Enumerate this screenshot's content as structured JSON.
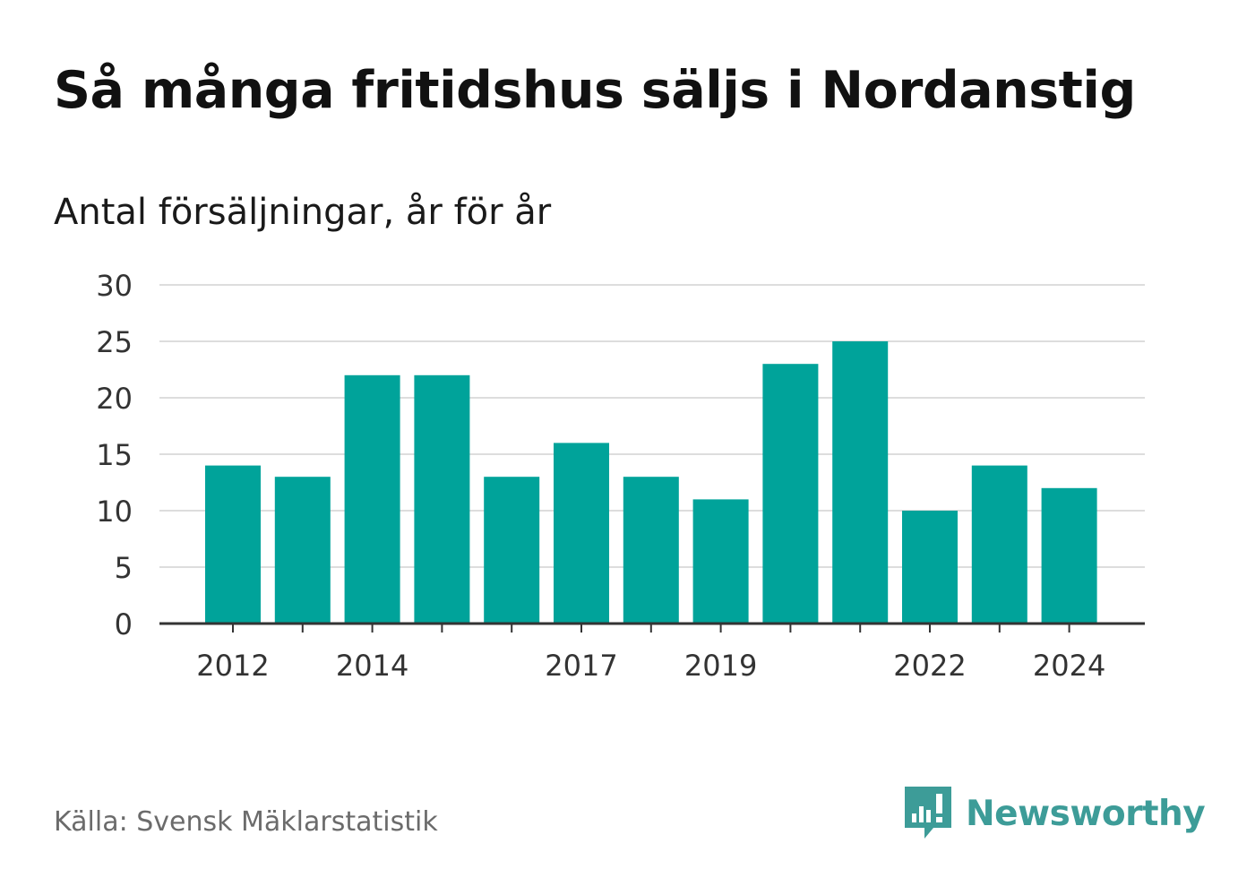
{
  "header": {
    "title": "Så många fritidshus säljs i Nordanstig",
    "subtitle": "Antal försäljningar, år för år"
  },
  "footer": {
    "source": "Källa: Svensk Mäklarstatistik",
    "brand": "Newsworthy",
    "brand_icon": "newsworthy-logo-icon"
  },
  "colors": {
    "bar": "#00a39a",
    "grid": "#dddddd",
    "axis": "#333333",
    "brand": "#3d9c98"
  },
  "chart_data": {
    "type": "bar",
    "categories": [
      "2012",
      "2013",
      "2014",
      "2015",
      "2016",
      "2017",
      "2018",
      "2019",
      "2020",
      "2021",
      "2022",
      "2023",
      "2024"
    ],
    "values": [
      14,
      13,
      22,
      22,
      13,
      16,
      13,
      11,
      23,
      25,
      10,
      14,
      12
    ],
    "x_tick_labels": [
      "2012",
      "2014",
      "2017",
      "2019",
      "2022",
      "2024"
    ],
    "y_ticks": [
      0,
      5,
      10,
      15,
      20,
      25,
      30
    ],
    "ylim": [
      0,
      30
    ],
    "grid": true
  }
}
